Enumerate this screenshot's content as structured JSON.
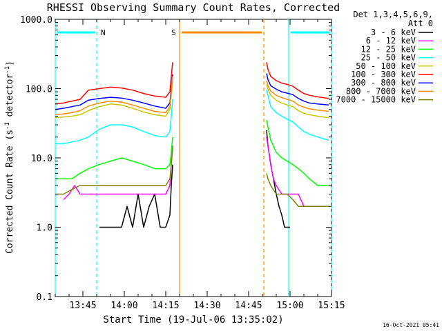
{
  "chart_data": {
    "type": "line",
    "title": "RHESSI Observing Summary Count Rates, Corrected",
    "xlabel": "Start Time (19-Jul-06 13:35:02)",
    "ylabel_prefix": "Corrected Count Rate (s",
    "ylabel_sup1": "-1",
    "ylabel_mid": " detector",
    "ylabel_sup2": "-1",
    "ylabel_suffix": ")",
    "x_axis": "minutes after 13:35:02",
    "xlim": [
      0,
      100
    ],
    "ylim": [
      0.1,
      1000
    ],
    "yscale": "log",
    "x_ticks": [
      {
        "x": 10,
        "label": "13:45"
      },
      {
        "x": 25,
        "label": "14:00"
      },
      {
        "x": 40,
        "label": "14:15"
      },
      {
        "x": 55,
        "label": "14:30"
      },
      {
        "x": 70,
        "label": "14:45"
      },
      {
        "x": 85,
        "label": "15:00"
      },
      {
        "x": 100,
        "label": "15:15"
      }
    ],
    "y_ticks": [
      {
        "y": 0.1,
        "label": "0.1"
      },
      {
        "y": 1,
        "label": "1.0"
      },
      {
        "y": 10,
        "label": "10.0"
      },
      {
        "y": 100,
        "label": "100.0"
      },
      {
        "y": 1000,
        "label": "1000.0"
      }
    ],
    "legend": {
      "placement": "right",
      "header1": "Det 1,3,4,5,6,9,",
      "header2": "Att 0"
    },
    "series": [
      {
        "name": "3 - 6 keV",
        "color": "#000000",
        "x": [
          16,
          18,
          20,
          22,
          24,
          26,
          28,
          30,
          32,
          34,
          36,
          38,
          40,
          41.5,
          42,
          42.5,
          76.5,
          77,
          78,
          79,
          80,
          81,
          82,
          83,
          84,
          85
        ],
        "y": [
          1,
          1,
          1,
          1,
          1,
          2,
          1,
          3,
          1,
          2,
          3,
          1,
          1,
          1.5,
          4,
          8,
          25,
          15,
          8,
          5,
          3,
          2,
          1.5,
          1,
          1,
          1
        ]
      },
      {
        "name": "6 - 12 keV",
        "color": "#ff00ff",
        "x": [
          3,
          5,
          7,
          9,
          11,
          13,
          15,
          17,
          20,
          24,
          28,
          32,
          36,
          40,
          41.5,
          42,
          42.5,
          76.5,
          77,
          78,
          79,
          80,
          82,
          84,
          86,
          88,
          90,
          92,
          95,
          99
        ],
        "y": [
          2.5,
          3,
          4,
          3,
          3,
          3,
          3,
          3,
          3,
          3,
          3,
          3,
          3,
          3,
          4,
          8,
          15,
          20,
          15,
          8,
          5,
          4,
          3,
          3,
          3,
          3,
          2,
          2,
          2,
          2
        ]
      },
      {
        "name": "12 - 25 keV",
        "color": "#00ff00",
        "x": [
          0,
          3,
          6,
          9,
          12,
          16,
          20,
          24,
          28,
          32,
          36,
          40,
          41.5,
          42,
          42.5,
          76.5,
          77,
          78,
          80,
          82,
          84,
          86,
          88,
          90,
          92,
          95,
          99
        ],
        "y": [
          5,
          5,
          5,
          6,
          7,
          8,
          9,
          10,
          9,
          8,
          7,
          7,
          8,
          12,
          20,
          35,
          28,
          18,
          12,
          10,
          9,
          8,
          7,
          6,
          5,
          4,
          4
        ]
      },
      {
        "name": "25 - 50 keV",
        "color": "#00ffff",
        "x": [
          0,
          3,
          6,
          9,
          12,
          16,
          20,
          24,
          28,
          32,
          36,
          40,
          41.5,
          42,
          42.5,
          76.5,
          77,
          78,
          80,
          82,
          84,
          86,
          88,
          90,
          92,
          95,
          99
        ],
        "y": [
          16,
          16,
          17,
          18,
          20,
          26,
          30,
          30,
          28,
          24,
          21,
          20,
          24,
          40,
          70,
          95,
          80,
          55,
          45,
          40,
          36,
          33,
          28,
          24,
          22,
          20,
          18
        ]
      },
      {
        "name": "50 - 100 keV",
        "color": "#c8c800",
        "x": [
          0,
          3,
          6,
          9,
          12,
          16,
          20,
          24,
          28,
          32,
          36,
          40,
          41.5,
          42,
          42.5,
          76.5,
          77,
          78,
          80,
          82,
          84,
          86,
          88,
          90,
          92,
          95,
          99
        ],
        "y": [
          38,
          39,
          40,
          42,
          48,
          55,
          60,
          58,
          52,
          46,
          42,
          40,
          50,
          80,
          130,
          115,
          98,
          80,
          68,
          62,
          58,
          55,
          48,
          44,
          42,
          40,
          38
        ]
      },
      {
        "name": "100 - 300 keV",
        "color": "#ff0000",
        "x": [
          0,
          3,
          6,
          9,
          12,
          16,
          20,
          24,
          28,
          32,
          36,
          40,
          41.5,
          42,
          42.5,
          76.5,
          77,
          78,
          80,
          82,
          84,
          86,
          88,
          90,
          92,
          95,
          99
        ],
        "y": [
          60,
          62,
          66,
          70,
          95,
          100,
          105,
          102,
          95,
          85,
          78,
          75,
          90,
          150,
          240,
          240,
          190,
          150,
          130,
          120,
          115,
          108,
          95,
          85,
          80,
          76,
          72
        ]
      },
      {
        "name": "300 - 800 keV",
        "color": "#0000ff",
        "x": [
          0,
          3,
          6,
          9,
          12,
          16,
          20,
          24,
          28,
          32,
          36,
          40,
          41.5,
          42,
          42.5,
          76.5,
          77,
          78,
          80,
          82,
          84,
          86,
          88,
          90,
          92,
          95,
          99
        ],
        "y": [
          50,
          52,
          55,
          58,
          68,
          72,
          75,
          73,
          68,
          62,
          56,
          52,
          62,
          100,
          160,
          165,
          135,
          110,
          98,
          90,
          86,
          82,
          72,
          66,
          62,
          60,
          58
        ]
      },
      {
        "name": "800 - 7000 keV",
        "color": "#ff8c00",
        "x": [
          0,
          3,
          6,
          9,
          12,
          16,
          20,
          24,
          28,
          32,
          36,
          40,
          41.5,
          42,
          42.5,
          76.5,
          77,
          78,
          80,
          82,
          84,
          86,
          88,
          90,
          92,
          95,
          99
        ],
        "y": [
          42,
          43,
          45,
          48,
          56,
          62,
          66,
          64,
          58,
          52,
          47,
          45,
          55,
          90,
          150,
          130,
          110,
          92,
          80,
          74,
          70,
          66,
          58,
          54,
          51,
          49,
          47
        ]
      },
      {
        "name": "7000 - 15000 keV",
        "color": "#808000",
        "x": [
          0,
          3,
          6,
          9,
          12,
          16,
          20,
          24,
          28,
          32,
          36,
          40,
          41.5,
          42,
          42.5,
          76.5,
          77,
          78,
          80,
          82,
          84,
          86,
          88,
          90,
          92,
          95,
          99
        ],
        "y": [
          3,
          3,
          3.5,
          4,
          4,
          4,
          4,
          4,
          4,
          4,
          4,
          4,
          5,
          8,
          14,
          6,
          5,
          4,
          3,
          3,
          3,
          2.5,
          2,
          2,
          2,
          2,
          2
        ]
      }
    ],
    "attenuator_bars": [
      {
        "code": "",
        "x0": 0,
        "x1": 15,
        "color": "#00ffff",
        "dashed_end": true
      },
      {
        "code": "N",
        "x0": 15,
        "x1": 15,
        "color": "#00ffff",
        "label_only": true
      },
      {
        "code": "S",
        "x0": 45,
        "x1": 75.5,
        "color": "#ff8c00",
        "dashed_end": true
      },
      {
        "code": "",
        "x0": 84.5,
        "x1": 100,
        "color": "#00ffff",
        "dashed_end": true
      }
    ],
    "vertical_lines": [
      {
        "x": 0,
        "color": "#00ffff",
        "style": "solid"
      },
      {
        "x": 15,
        "color": "#00ffff",
        "style": "dashed"
      },
      {
        "x": 45,
        "color": "#ff8c00",
        "style": "solid"
      },
      {
        "x": 75.5,
        "color": "#ff8c00",
        "style": "dashed"
      },
      {
        "x": 84.5,
        "color": "#00ffff",
        "style": "solid"
      },
      {
        "x": 100,
        "color": "#00ffff",
        "style": "dashed"
      }
    ]
  },
  "footer": {
    "timestamp": "16-Oct-2021 05:41"
  }
}
